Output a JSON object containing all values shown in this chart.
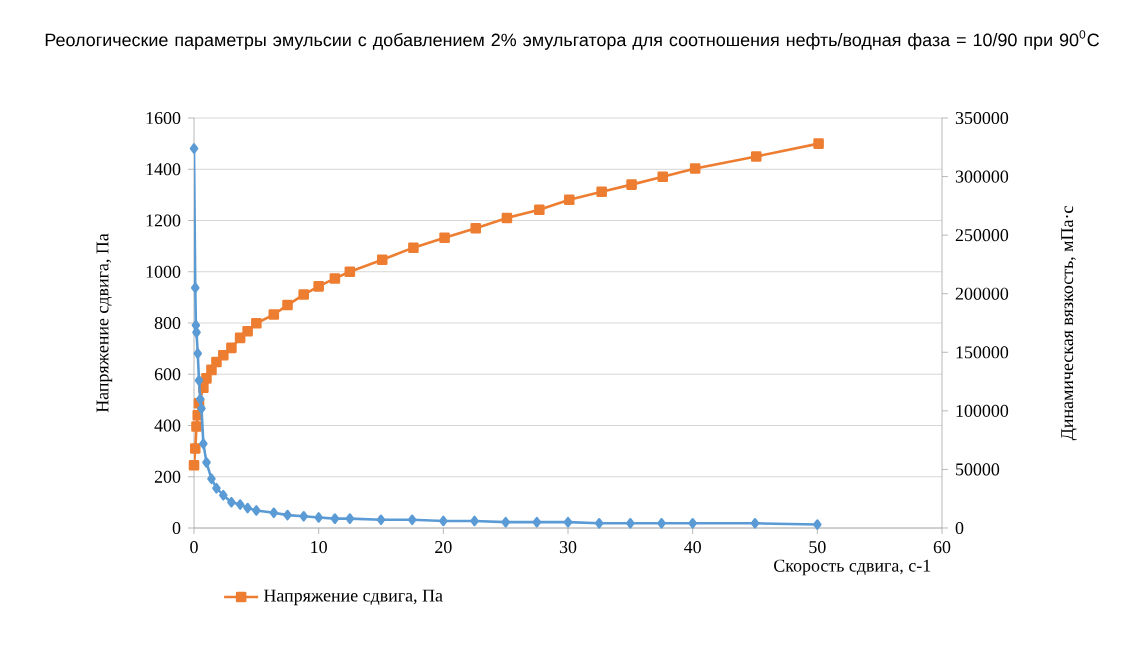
{
  "chart_data": {
    "type": "line",
    "title": "Реологические параметры эмульсии с добавлением 2% эмульгатора для соотношения нефть/водная фаза = 10/90 при 90$^{0}$С",
    "xlabel": "Скорость сдвига, с-1",
    "ylabel": "Напряжение сдвига, Па",
    "y2label": "Динамическая вязкость, мПа·с",
    "xlim": [
      0,
      60
    ],
    "xticks": [
      0,
      10,
      20,
      30,
      40,
      50,
      60
    ],
    "ylim": [
      0,
      1600
    ],
    "yticks": [
      0,
      200,
      400,
      600,
      800,
      1000,
      1200,
      1400,
      1600
    ],
    "y2lim": [
      0,
      350000
    ],
    "y2ticks": [
      0,
      50000,
      100000,
      150000,
      200000,
      250000,
      300000,
      350000
    ],
    "grid": "y",
    "legend": "bottom",
    "series": [
      {
        "name": "Напряжение сдвига, Па",
        "color": "#ed7d31",
        "marker": "square",
        "x": [
          0,
          0.1,
          0.2,
          0.3,
          0.4,
          0.75,
          1,
          1.4,
          1.8,
          2.35,
          3,
          3.7,
          4.3,
          5,
          6.4,
          7.5,
          8.8,
          10,
          11.3,
          12.5,
          15.1,
          17.6,
          20.1,
          22.6,
          25.1,
          27.7,
          30.1,
          32.7,
          35.1,
          37.6,
          40.2,
          45.1,
          50.1
        ],
        "values": [
          245,
          310,
          396,
          440,
          487,
          547,
          584,
          617,
          648,
          674,
          703,
          742,
          768,
          799,
          833,
          870,
          911,
          943,
          974,
          1000,
          1047,
          1094,
          1133,
          1170,
          1210,
          1242,
          1281,
          1312,
          1340,
          1371,
          1403,
          1450,
          1500
        ]
      },
      {
        "color": "#5b9bd5",
        "marker": "diamond",
        "axis": "y2",
        "x": [
          0,
          0.1,
          0.15,
          0.2,
          0.3,
          0.4,
          0.5,
          0.6,
          0.75,
          1,
          1.4,
          1.8,
          2.35,
          3,
          3.7,
          4.3,
          5,
          6.4,
          7.5,
          8.8,
          10,
          11.3,
          12.5,
          15,
          17.5,
          20,
          22.5,
          25,
          27.5,
          30,
          32.5,
          35,
          37.5,
          40,
          45,
          50
        ],
        "values": [
          324000,
          205000,
          173000,
          167000,
          149000,
          126000,
          110000,
          102000,
          72000,
          56000,
          42000,
          34000,
          28000,
          22000,
          20000,
          17000,
          15000,
          13000,
          11000,
          10000,
          9000,
          8000,
          8000,
          7000,
          7000,
          6000,
          6000,
          5000,
          5000,
          5000,
          4000,
          4000,
          4000,
          4000,
          4000,
          3000
        ]
      }
    ]
  }
}
